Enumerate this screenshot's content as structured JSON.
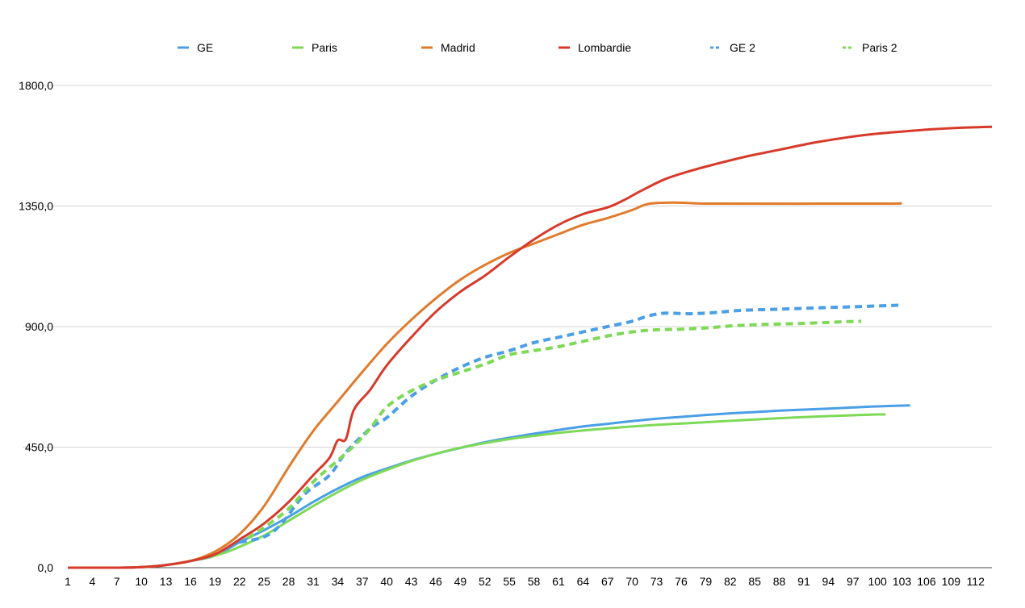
{
  "chart_data": {
    "type": "line",
    "title": "",
    "xlabel": "",
    "ylabel": "",
    "xlim": [
      1,
      114
    ],
    "ylim": [
      0,
      1800
    ],
    "y_ticks": [
      0,
      450,
      900,
      1350,
      1800
    ],
    "y_tick_labels": [
      "0,0",
      "450,0",
      "900,0",
      "1350,0",
      "1800,0"
    ],
    "x_tick_labels": [
      "1",
      "4",
      "7",
      "10",
      "13",
      "16",
      "19",
      "22",
      "25",
      "28",
      "31",
      "34",
      "37",
      "40",
      "43",
      "46",
      "49",
      "52",
      "55",
      "58",
      "61",
      "64",
      "67",
      "70",
      "73",
      "76",
      "79",
      "82",
      "85",
      "88",
      "91",
      "94",
      "97",
      "100",
      "103",
      "106",
      "109",
      "112"
    ],
    "grid": true,
    "legend_position": "top",
    "series": [
      {
        "name": "GE",
        "color": "#4a9fe6",
        "style": "solid",
        "points": [
          [
            1,
            0
          ],
          [
            7,
            0
          ],
          [
            10,
            2
          ],
          [
            13,
            10
          ],
          [
            16,
            25
          ],
          [
            19,
            45
          ],
          [
            22,
            95
          ],
          [
            25,
            140
          ],
          [
            28,
            190
          ],
          [
            31,
            245
          ],
          [
            34,
            295
          ],
          [
            37,
            338
          ],
          [
            40,
            370
          ],
          [
            43,
            400
          ],
          [
            46,
            425
          ],
          [
            49,
            447
          ],
          [
            52,
            468
          ],
          [
            55,
            485
          ],
          [
            58,
            500
          ],
          [
            61,
            514
          ],
          [
            64,
            527
          ],
          [
            67,
            537
          ],
          [
            70,
            547
          ],
          [
            73,
            556
          ],
          [
            76,
            563
          ],
          [
            79,
            570
          ],
          [
            82,
            576
          ],
          [
            85,
            581
          ],
          [
            88,
            586
          ],
          [
            91,
            590
          ],
          [
            94,
            594
          ],
          [
            97,
            598
          ],
          [
            100,
            602
          ],
          [
            104,
            606
          ]
        ]
      },
      {
        "name": "Paris",
        "color": "#7ed957",
        "style": "solid",
        "points": [
          [
            10,
            2
          ],
          [
            13,
            10
          ],
          [
            16,
            25
          ],
          [
            19,
            45
          ],
          [
            21,
            65
          ],
          [
            25,
            120
          ],
          [
            28,
            175
          ],
          [
            31,
            230
          ],
          [
            34,
            282
          ],
          [
            37,
            328
          ],
          [
            40,
            365
          ],
          [
            43,
            398
          ],
          [
            46,
            425
          ],
          [
            49,
            448
          ],
          [
            52,
            465
          ],
          [
            55,
            480
          ],
          [
            58,
            492
          ],
          [
            61,
            503
          ],
          [
            64,
            512
          ],
          [
            67,
            520
          ],
          [
            70,
            527
          ],
          [
            73,
            533
          ],
          [
            76,
            538
          ],
          [
            79,
            543
          ],
          [
            82,
            548
          ],
          [
            85,
            553
          ],
          [
            88,
            558
          ],
          [
            91,
            562
          ],
          [
            94,
            566
          ],
          [
            97,
            569
          ],
          [
            100,
            572
          ],
          [
            101,
            572
          ]
        ]
      },
      {
        "name": "Madrid",
        "color": "#e07b2c",
        "style": "solid",
        "points": [
          [
            1,
            0
          ],
          [
            7,
            0
          ],
          [
            10,
            2
          ],
          [
            13,
            10
          ],
          [
            16,
            25
          ],
          [
            19,
            60
          ],
          [
            22,
            125
          ],
          [
            25,
            230
          ],
          [
            28,
            375
          ],
          [
            31,
            510
          ],
          [
            34,
            620
          ],
          [
            37,
            730
          ],
          [
            40,
            835
          ],
          [
            43,
            925
          ],
          [
            46,
            1005
          ],
          [
            49,
            1075
          ],
          [
            52,
            1130
          ],
          [
            55,
            1175
          ],
          [
            58,
            1210
          ],
          [
            61,
            1245
          ],
          [
            64,
            1280
          ],
          [
            67,
            1305
          ],
          [
            70,
            1335
          ],
          [
            72,
            1358
          ],
          [
            75,
            1363
          ],
          [
            78,
            1360
          ],
          [
            81,
            1359
          ],
          [
            100,
            1359
          ],
          [
            103,
            1360
          ]
        ]
      },
      {
        "name": "Lombardie",
        "color": "#d73a2a",
        "style": "solid",
        "points": [
          [
            1,
            0
          ],
          [
            7,
            0
          ],
          [
            10,
            2
          ],
          [
            13,
            10
          ],
          [
            16,
            25
          ],
          [
            19,
            50
          ],
          [
            22,
            105
          ],
          [
            25,
            165
          ],
          [
            28,
            245
          ],
          [
            31,
            345
          ],
          [
            33,
            410
          ],
          [
            34,
            475
          ],
          [
            35,
            480
          ],
          [
            36,
            590
          ],
          [
            38,
            665
          ],
          [
            40,
            755
          ],
          [
            43,
            860
          ],
          [
            46,
            955
          ],
          [
            49,
            1030
          ],
          [
            52,
            1090
          ],
          [
            55,
            1160
          ],
          [
            58,
            1225
          ],
          [
            61,
            1280
          ],
          [
            64,
            1320
          ],
          [
            67,
            1345
          ],
          [
            69,
            1372
          ],
          [
            71,
            1405
          ],
          [
            74,
            1450
          ],
          [
            77,
            1480
          ],
          [
            80,
            1505
          ],
          [
            84,
            1535
          ],
          [
            88,
            1560
          ],
          [
            92,
            1585
          ],
          [
            96,
            1605
          ],
          [
            100,
            1620
          ],
          [
            106,
            1635
          ],
          [
            110,
            1642
          ],
          [
            114,
            1646
          ]
        ]
      },
      {
        "name": "GE 2",
        "color": "#4a9fe6",
        "style": "dashed",
        "points": [
          [
            22,
            95
          ],
          [
            25,
            115
          ],
          [
            27,
            160
          ],
          [
            30,
            275
          ],
          [
            33,
            345
          ],
          [
            35,
            430
          ],
          [
            38,
            520
          ],
          [
            40,
            560
          ],
          [
            43,
            640
          ],
          [
            46,
            700
          ],
          [
            49,
            748
          ],
          [
            52,
            785
          ],
          [
            55,
            810
          ],
          [
            58,
            840
          ],
          [
            61,
            860
          ],
          [
            64,
            880
          ],
          [
            67,
            900
          ],
          [
            70,
            920
          ],
          [
            72,
            940
          ],
          [
            74,
            950
          ],
          [
            77,
            948
          ],
          [
            80,
            952
          ],
          [
            83,
            960
          ],
          [
            88,
            965
          ],
          [
            93,
            970
          ],
          [
            98,
            975
          ],
          [
            103,
            980
          ]
        ]
      },
      {
        "name": "Paris 2",
        "color": "#7ed957",
        "style": "dashed",
        "points": [
          [
            23,
            110
          ],
          [
            25,
            150
          ],
          [
            28,
            220
          ],
          [
            31,
            320
          ],
          [
            34,
            400
          ],
          [
            36,
            455
          ],
          [
            38,
            520
          ],
          [
            40,
            600
          ],
          [
            43,
            660
          ],
          [
            46,
            700
          ],
          [
            49,
            730
          ],
          [
            52,
            760
          ],
          [
            55,
            795
          ],
          [
            58,
            810
          ],
          [
            61,
            825
          ],
          [
            64,
            845
          ],
          [
            67,
            865
          ],
          [
            70,
            880
          ],
          [
            73,
            888
          ],
          [
            76,
            890
          ],
          [
            79,
            895
          ],
          [
            82,
            902
          ],
          [
            86,
            908
          ],
          [
            91,
            912
          ],
          [
            96,
            918
          ],
          [
            98,
            920
          ]
        ]
      }
    ]
  }
}
